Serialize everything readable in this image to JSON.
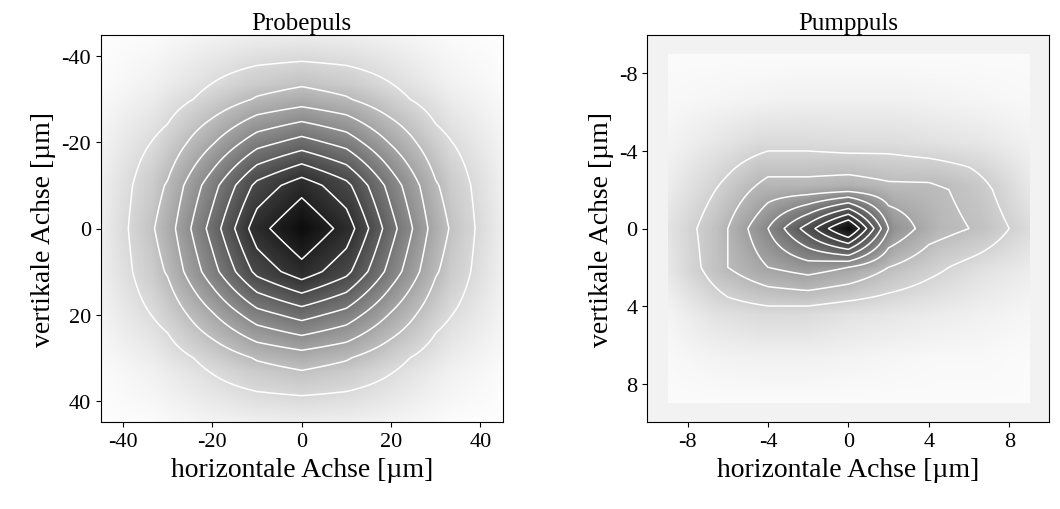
{
  "chart_data": [
    {
      "type": "heatmap",
      "title": "Probepuls",
      "x_label": "horizontale Achse [µm]",
      "y_label": "vertikale Achse [µm]",
      "xlim": [
        -45,
        45
      ],
      "ylim": [
        45,
        -45
      ],
      "xticks": [
        -40,
        -20,
        0,
        20,
        40
      ],
      "yticks": [
        -40,
        -20,
        0,
        20,
        40
      ],
      "x": [
        -40,
        -30,
        -20,
        -10,
        0,
        10,
        20,
        30,
        40
      ],
      "y": [
        -40,
        -30,
        -20,
        -10,
        0,
        10,
        20,
        30,
        40
      ],
      "cells": [
        [
          0.01,
          0.02,
          0.05,
          0.07,
          0.08,
          0.07,
          0.05,
          0.02,
          0.01
        ],
        [
          0.02,
          0.06,
          0.13,
          0.21,
          0.25,
          0.21,
          0.13,
          0.06,
          0.02
        ],
        [
          0.05,
          0.13,
          0.29,
          0.46,
          0.54,
          0.46,
          0.29,
          0.13,
          0.05
        ],
        [
          0.07,
          0.21,
          0.46,
          0.73,
          0.86,
          0.73,
          0.46,
          0.21,
          0.07
        ],
        [
          0.08,
          0.25,
          0.54,
          0.86,
          1.0,
          0.86,
          0.54,
          0.25,
          0.08
        ],
        [
          0.07,
          0.21,
          0.46,
          0.73,
          0.86,
          0.73,
          0.46,
          0.21,
          0.07
        ],
        [
          0.05,
          0.13,
          0.29,
          0.46,
          0.54,
          0.46,
          0.29,
          0.13,
          0.05
        ],
        [
          0.02,
          0.06,
          0.13,
          0.21,
          0.25,
          0.21,
          0.13,
          0.06,
          0.02
        ],
        [
          0.01,
          0.02,
          0.05,
          0.07,
          0.08,
          0.07,
          0.05,
          0.02,
          0.01
        ]
      ],
      "contour_levels": [
        0.1,
        0.2,
        0.3,
        0.4,
        0.5,
        0.6,
        0.7,
        0.8,
        0.9
      ]
    },
    {
      "type": "heatmap",
      "title": "Pumppuls",
      "x_label": "horizontale Achse [µm]",
      "y_label": "vertikale Achse [µm]",
      "xlim": [
        -10,
        10
      ],
      "ylim": [
        10,
        -10
      ],
      "xticks": [
        -8,
        -4,
        0,
        4,
        8
      ],
      "yticks": [
        -8,
        -4,
        0,
        4,
        8
      ],
      "x": [
        -8,
        -6,
        -4,
        -2,
        0,
        2,
        4,
        6,
        8
      ],
      "y": [
        -8,
        -6,
        -4,
        -2,
        0,
        2,
        4,
        6,
        8
      ],
      "cells": [
        [
          0.02,
          0.02,
          0.02,
          0.02,
          0.02,
          0.02,
          0.02,
          0.02,
          0.02
        ],
        [
          0.03,
          0.04,
          0.05,
          0.06,
          0.06,
          0.06,
          0.05,
          0.04,
          0.03
        ],
        [
          0.05,
          0.1,
          0.15,
          0.15,
          0.14,
          0.14,
          0.12,
          0.1,
          0.06
        ],
        [
          0.08,
          0.18,
          0.3,
          0.3,
          0.32,
          0.28,
          0.28,
          0.22,
          0.1
        ],
        [
          0.12,
          0.25,
          0.45,
          0.7,
          1.0,
          0.45,
          0.3,
          0.25,
          0.15
        ],
        [
          0.1,
          0.25,
          0.35,
          0.4,
          0.35,
          0.25,
          0.18,
          0.12,
          0.08
        ],
        [
          0.05,
          0.12,
          0.15,
          0.15,
          0.12,
          0.1,
          0.08,
          0.06,
          0.04
        ],
        [
          0.03,
          0.05,
          0.06,
          0.06,
          0.05,
          0.04,
          0.03,
          0.03,
          0.02
        ],
        [
          0.02,
          0.02,
          0.02,
          0.02,
          0.02,
          0.02,
          0.02,
          0.02,
          0.02
        ]
      ],
      "contour_levels": [
        0.15,
        0.25,
        0.35,
        0.45,
        0.55,
        0.65,
        0.75,
        0.85
      ]
    }
  ]
}
